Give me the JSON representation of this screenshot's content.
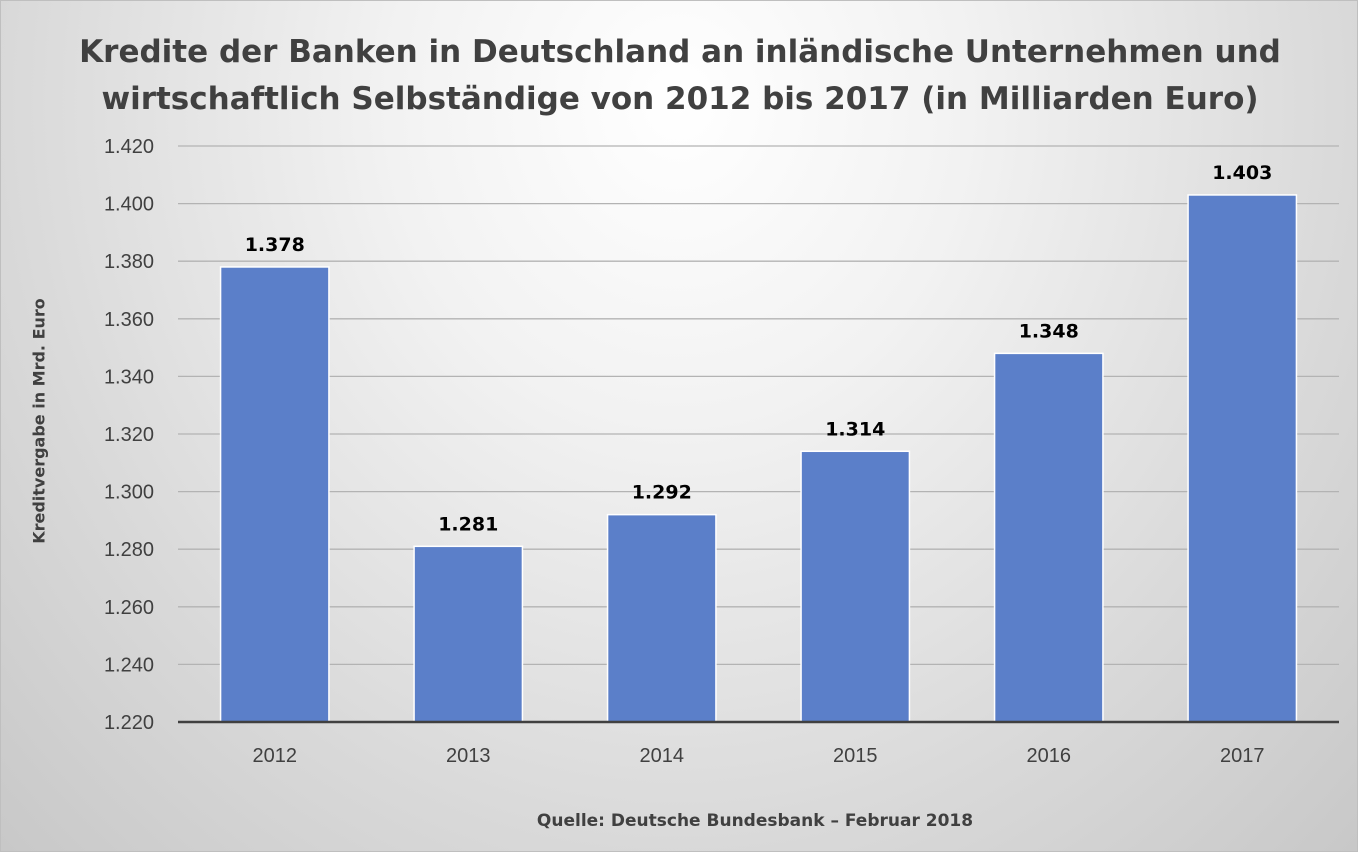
{
  "chart_data": {
    "type": "bar",
    "title": "Kredite der Banken in Deutschland an inländische Unternehmen und wirtschaftlich Selbständige von 2012 bis 2017 (in Milliarden Euro)",
    "title_lines": [
      "Kredite der Banken in Deutschland an inländische Unternehmen und",
      "wirtschaftlich Selbständige von 2012 bis 2017 (in Milliarden Euro)"
    ],
    "xlabel": "",
    "ylabel": "Kreditvergabe in Mrd. Euro",
    "categories": [
      "2012",
      "2013",
      "2014",
      "2015",
      "2016",
      "2017"
    ],
    "values": [
      1378,
      1281,
      1292,
      1314,
      1348,
      1403
    ],
    "value_labels": [
      "1.378",
      "1.281",
      "1.292",
      "1.314",
      "1.348",
      "1.403"
    ],
    "ylim": [
      1220,
      1420
    ],
    "y_ticks": [
      1220,
      1240,
      1260,
      1280,
      1300,
      1320,
      1340,
      1360,
      1380,
      1400,
      1420
    ],
    "y_tick_labels": [
      "1.220",
      "1.240",
      "1.260",
      "1.280",
      "1.300",
      "1.320",
      "1.340",
      "1.360",
      "1.380",
      "1.400",
      "1.420"
    ],
    "grid": true,
    "legend": "none",
    "source": "Quelle: Deutsche Bundesbank – Februar 2018",
    "colors": {
      "bar": "#5b7fc9",
      "bar_edge": "#ffffff",
      "grid": "#b3b3b3",
      "axis": "#404040"
    }
  }
}
